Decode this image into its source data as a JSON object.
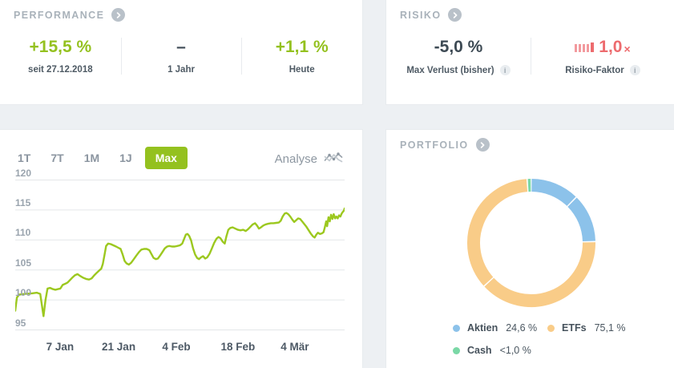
{
  "colors": {
    "background": "#edf0f3",
    "panel": "#ffffff",
    "accent_green": "#94c11f",
    "line_green": "#9cc81f",
    "risk_red": "#ed6b6e",
    "donut_blue": "#8cc2ea",
    "donut_orange": "#f9cc88",
    "donut_green": "#7ad8a6",
    "title_gray": "#a9b2ba",
    "value_dark": "#3d4a54",
    "grid_gray": "#e4e7e9"
  },
  "icons": {
    "info_glyph": "i"
  },
  "performance": {
    "title": "PERFORMANCE",
    "stats": [
      {
        "value": "+15,5 %",
        "label": "seit 27.12.2018",
        "emphasis": "green"
      },
      {
        "value": "–",
        "label": "1 Jahr",
        "emphasis": "dark"
      },
      {
        "value": "+1,1 %",
        "label": "Heute",
        "emphasis": "green"
      }
    ]
  },
  "risk": {
    "title": "RISIKO",
    "stats": [
      {
        "value": "-5,0 %",
        "label": "Max Verlust (bisher)",
        "has_info": true
      },
      {
        "value": "1,0",
        "suffix": "×",
        "label": "Risiko-Faktor",
        "has_info": true,
        "icon": "risk-bars"
      }
    ]
  },
  "chart": {
    "ranges": [
      {
        "label": "1T"
      },
      {
        "label": "7T"
      },
      {
        "label": "1M"
      },
      {
        "label": "1J"
      },
      {
        "label": "Max"
      }
    ],
    "active_range": "Max",
    "analyse_label": "Analyse"
  },
  "portfolio": {
    "title": "PORTFOLIO",
    "legend": [
      {
        "name": "Aktien",
        "value": "24,6 %",
        "color": "#8cc2ea"
      },
      {
        "name": "ETFs",
        "value": "75,1 %",
        "color": "#f9cc88"
      },
      {
        "name": "Cash",
        "value": "<1,0 %",
        "color": "#7ad8a6"
      }
    ]
  },
  "chart_data": [
    {
      "type": "line",
      "name": "portfolio-performance",
      "title": "",
      "xlabel": "",
      "ylabel": "",
      "ylim": [
        95,
        120
      ],
      "yticks": [
        120,
        115,
        110,
        105,
        100,
        95
      ],
      "xticks": [
        {
          "label": "7 Jan",
          "pos": 0.136
        },
        {
          "label": "21 Jan",
          "pos": 0.314
        },
        {
          "label": "4 Feb",
          "pos": 0.489
        },
        {
          "label": "18 Feb",
          "pos": 0.676
        },
        {
          "label": "4 Mär",
          "pos": 0.849
        }
      ],
      "grid": true,
      "legend_position": "none",
      "color": "#9cc81f",
      "points": [
        [
          0.0,
          98.2
        ],
        [
          0.005,
          100.4
        ],
        [
          0.012,
          100.9
        ],
        [
          0.03,
          101.0
        ],
        [
          0.05,
          101.1
        ],
        [
          0.066,
          101.2
        ],
        [
          0.076,
          101.0
        ],
        [
          0.086,
          97.3
        ],
        [
          0.092,
          100.0
        ],
        [
          0.098,
          101.9
        ],
        [
          0.106,
          102.0
        ],
        [
          0.114,
          101.8
        ],
        [
          0.122,
          101.7
        ],
        [
          0.13,
          101.8
        ],
        [
          0.137,
          101.9
        ],
        [
          0.144,
          102.5
        ],
        [
          0.152,
          102.7
        ],
        [
          0.159,
          102.9
        ],
        [
          0.166,
          103.3
        ],
        [
          0.173,
          103.7
        ],
        [
          0.181,
          104.1
        ],
        [
          0.189,
          104.3
        ],
        [
          0.197,
          104.0
        ],
        [
          0.206,
          103.7
        ],
        [
          0.215,
          103.5
        ],
        [
          0.224,
          103.4
        ],
        [
          0.232,
          103.6
        ],
        [
          0.24,
          104.1
        ],
        [
          0.249,
          104.6
        ],
        [
          0.255,
          104.9
        ],
        [
          0.261,
          105.2
        ],
        [
          0.266,
          106.0
        ],
        [
          0.271,
          107.5
        ],
        [
          0.276,
          109.0
        ],
        [
          0.282,
          109.4
        ],
        [
          0.29,
          109.3
        ],
        [
          0.298,
          109.1
        ],
        [
          0.306,
          108.9
        ],
        [
          0.313,
          108.7
        ],
        [
          0.32,
          108.5
        ],
        [
          0.326,
          107.6
        ],
        [
          0.332,
          106.5
        ],
        [
          0.338,
          106.1
        ],
        [
          0.345,
          105.9
        ],
        [
          0.352,
          106.2
        ],
        [
          0.36,
          106.8
        ],
        [
          0.368,
          107.4
        ],
        [
          0.376,
          108.0
        ],
        [
          0.383,
          108.4
        ],
        [
          0.391,
          108.5
        ],
        [
          0.399,
          108.5
        ],
        [
          0.407,
          108.3
        ],
        [
          0.414,
          107.6
        ],
        [
          0.42,
          107.0
        ],
        [
          0.427,
          106.8
        ],
        [
          0.433,
          106.9
        ],
        [
          0.44,
          107.4
        ],
        [
          0.447,
          108.0
        ],
        [
          0.454,
          108.6
        ],
        [
          0.461,
          108.9
        ],
        [
          0.468,
          109.0
        ],
        [
          0.476,
          108.9
        ],
        [
          0.484,
          108.9
        ],
        [
          0.492,
          109.0
        ],
        [
          0.5,
          109.1
        ],
        [
          0.507,
          109.4
        ],
        [
          0.513,
          110.2
        ],
        [
          0.518,
          110.9
        ],
        [
          0.523,
          111.0
        ],
        [
          0.528,
          110.7
        ],
        [
          0.534,
          109.9
        ],
        [
          0.54,
          108.6
        ],
        [
          0.546,
          107.6
        ],
        [
          0.552,
          107.0
        ],
        [
          0.558,
          106.8
        ],
        [
          0.564,
          107.1
        ],
        [
          0.57,
          107.3
        ],
        [
          0.577,
          106.9
        ],
        [
          0.583,
          107.1
        ],
        [
          0.59,
          107.7
        ],
        [
          0.597,
          108.6
        ],
        [
          0.604,
          109.5
        ],
        [
          0.611,
          110.2
        ],
        [
          0.617,
          110.5
        ],
        [
          0.623,
          110.3
        ],
        [
          0.63,
          109.7
        ],
        [
          0.636,
          109.4
        ],
        [
          0.641,
          110.6
        ],
        [
          0.647,
          111.7
        ],
        [
          0.653,
          112.0
        ],
        [
          0.66,
          112.1
        ],
        [
          0.668,
          111.9
        ],
        [
          0.676,
          111.7
        ],
        [
          0.684,
          111.6
        ],
        [
          0.692,
          111.7
        ],
        [
          0.7,
          111.5
        ],
        [
          0.707,
          111.8
        ],
        [
          0.714,
          112.2
        ],
        [
          0.721,
          112.6
        ],
        [
          0.728,
          112.8
        ],
        [
          0.734,
          112.4
        ],
        [
          0.74,
          111.9
        ],
        [
          0.746,
          112.1
        ],
        [
          0.753,
          112.4
        ],
        [
          0.76,
          112.6
        ],
        [
          0.768,
          112.7
        ],
        [
          0.776,
          112.8
        ],
        [
          0.784,
          112.8
        ],
        [
          0.792,
          112.85
        ],
        [
          0.8,
          112.9
        ],
        [
          0.806,
          113.2
        ],
        [
          0.812,
          113.9
        ],
        [
          0.818,
          114.4
        ],
        [
          0.823,
          114.5
        ],
        [
          0.829,
          114.3
        ],
        [
          0.835,
          113.9
        ],
        [
          0.841,
          113.4
        ],
        [
          0.847,
          113.0
        ],
        [
          0.853,
          113.3
        ],
        [
          0.859,
          113.6
        ],
        [
          0.865,
          113.5
        ],
        [
          0.871,
          113.1
        ],
        [
          0.877,
          112.7
        ],
        [
          0.884,
          112.2
        ],
        [
          0.891,
          111.6
        ],
        [
          0.898,
          111.0
        ],
        [
          0.904,
          110.6
        ],
        [
          0.909,
          110.4
        ],
        [
          0.914,
          110.9
        ],
        [
          0.919,
          111.2
        ],
        [
          0.925,
          111.0
        ],
        [
          0.931,
          111.1
        ],
        [
          0.936,
          111.3
        ],
        [
          0.94,
          112.1
        ],
        [
          0.944,
          113.1
        ],
        [
          0.947,
          112.3
        ],
        [
          0.951,
          113.8
        ],
        [
          0.955,
          113.1
        ],
        [
          0.959,
          114.2
        ],
        [
          0.963,
          113.5
        ],
        [
          0.967,
          114.3
        ],
        [
          0.971,
          113.6
        ],
        [
          0.975,
          113.9
        ],
        [
          0.979,
          113.6
        ],
        [
          0.983,
          114.1
        ],
        [
          0.987,
          113.9
        ],
        [
          0.991,
          114.4
        ],
        [
          0.995,
          114.7
        ],
        [
          0.998,
          114.9
        ],
        [
          1.0,
          115.25
        ]
      ]
    },
    {
      "type": "pie",
      "subtype": "donut",
      "name": "portfolio-allocation",
      "series": [
        {
          "name": "Aktien",
          "value": 24.6,
          "color": "#8cc2ea"
        },
        {
          "name": "ETFs",
          "value": 75.1,
          "color": "#f9cc88"
        },
        {
          "name": "Cash",
          "value": 0.3,
          "color": "#7ad8a6"
        }
      ],
      "display_segments": [
        {
          "series": "Aktien",
          "start": 0.3,
          "end": 43.9
        },
        {
          "series": "Aktien",
          "start": 45.1,
          "end": 88.2
        },
        {
          "series": "ETFs",
          "start": 89.4,
          "end": 227.0
        },
        {
          "series": "ETFs",
          "start": 228.2,
          "end": 355.6
        },
        {
          "series": "Cash",
          "start": 356.8,
          "end": 359.4
        }
      ],
      "legend_position": "bottom"
    }
  ]
}
